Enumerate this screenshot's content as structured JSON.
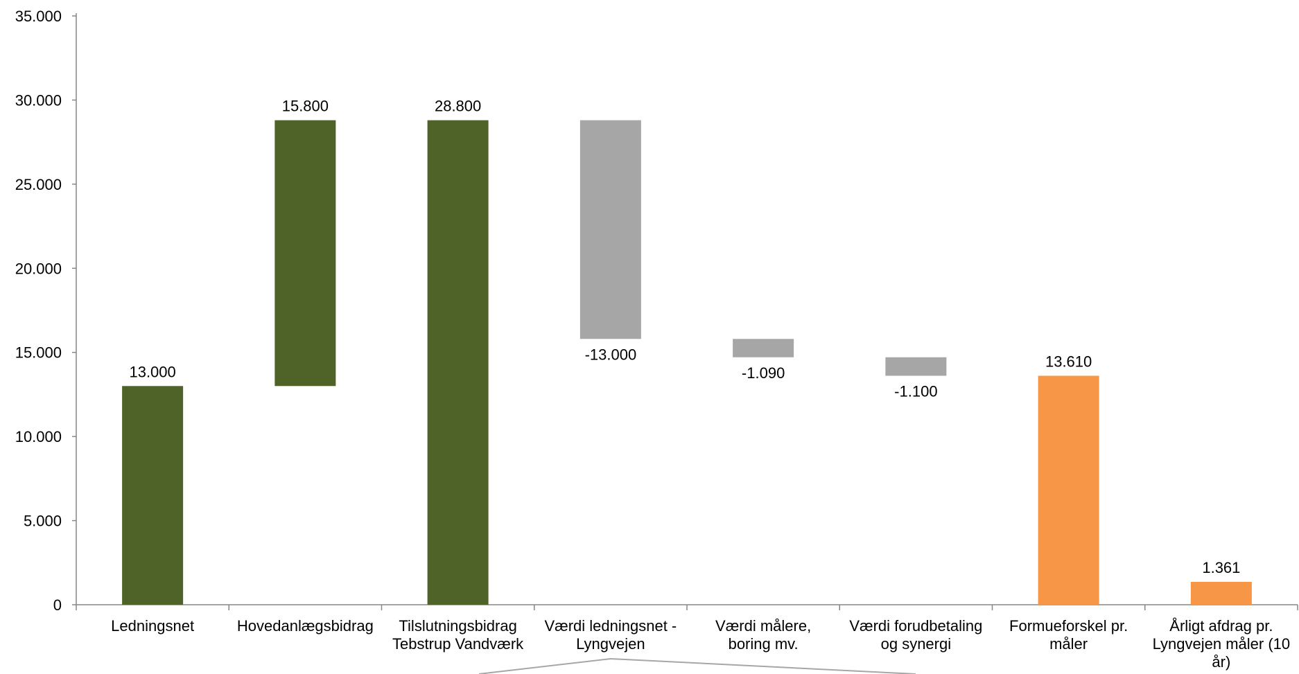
{
  "chart_data": {
    "type": "bar",
    "subtype": "waterfall",
    "title": "",
    "xlabel": "",
    "ylabel": "",
    "ylim": [
      0,
      35000
    ],
    "yticks": [
      "0",
      "5.000",
      "10.000",
      "15.000",
      "20.000",
      "25.000",
      "30.000",
      "35.000"
    ],
    "grid": false,
    "legend": "none",
    "colors": {
      "positive": "#4F6228",
      "negative": "#A6A6A6",
      "result": "#F79646"
    },
    "categories": [
      [
        "Ledningsnet"
      ],
      [
        "Hovedanlægsbidrag"
      ],
      [
        "Tilslutningsbidrag",
        "Tebstrup Vandværk"
      ],
      [
        "Værdi ledningsnet -",
        "Lyngvejen"
      ],
      [
        "Værdi målere,",
        "boring mv."
      ],
      [
        "Værdi forudbetaling",
        "og synergi"
      ],
      [
        "Formueforskel pr.",
        "måler"
      ],
      [
        "Årligt afdrag pr.",
        "Lyngvejen måler (10",
        "år)"
      ]
    ],
    "bars": [
      {
        "base": 0,
        "top": 13000,
        "kind": "positive",
        "label": "13.000"
      },
      {
        "base": 13000,
        "top": 28800,
        "kind": "positive",
        "label": "15.800"
      },
      {
        "base": 0,
        "top": 28800,
        "kind": "positive",
        "label": "28.800"
      },
      {
        "base": 15800,
        "top": 28800,
        "kind": "negative",
        "label": "-13.000"
      },
      {
        "base": 14710,
        "top": 15800,
        "kind": "negative",
        "label": "-1.090"
      },
      {
        "base": 13610,
        "top": 14710,
        "kind": "negative",
        "label": "-1.100"
      },
      {
        "base": 0,
        "top": 13610,
        "kind": "result",
        "label": "13.610"
      },
      {
        "base": 0,
        "top": 1361,
        "kind": "result",
        "label": "1.361"
      }
    ]
  }
}
